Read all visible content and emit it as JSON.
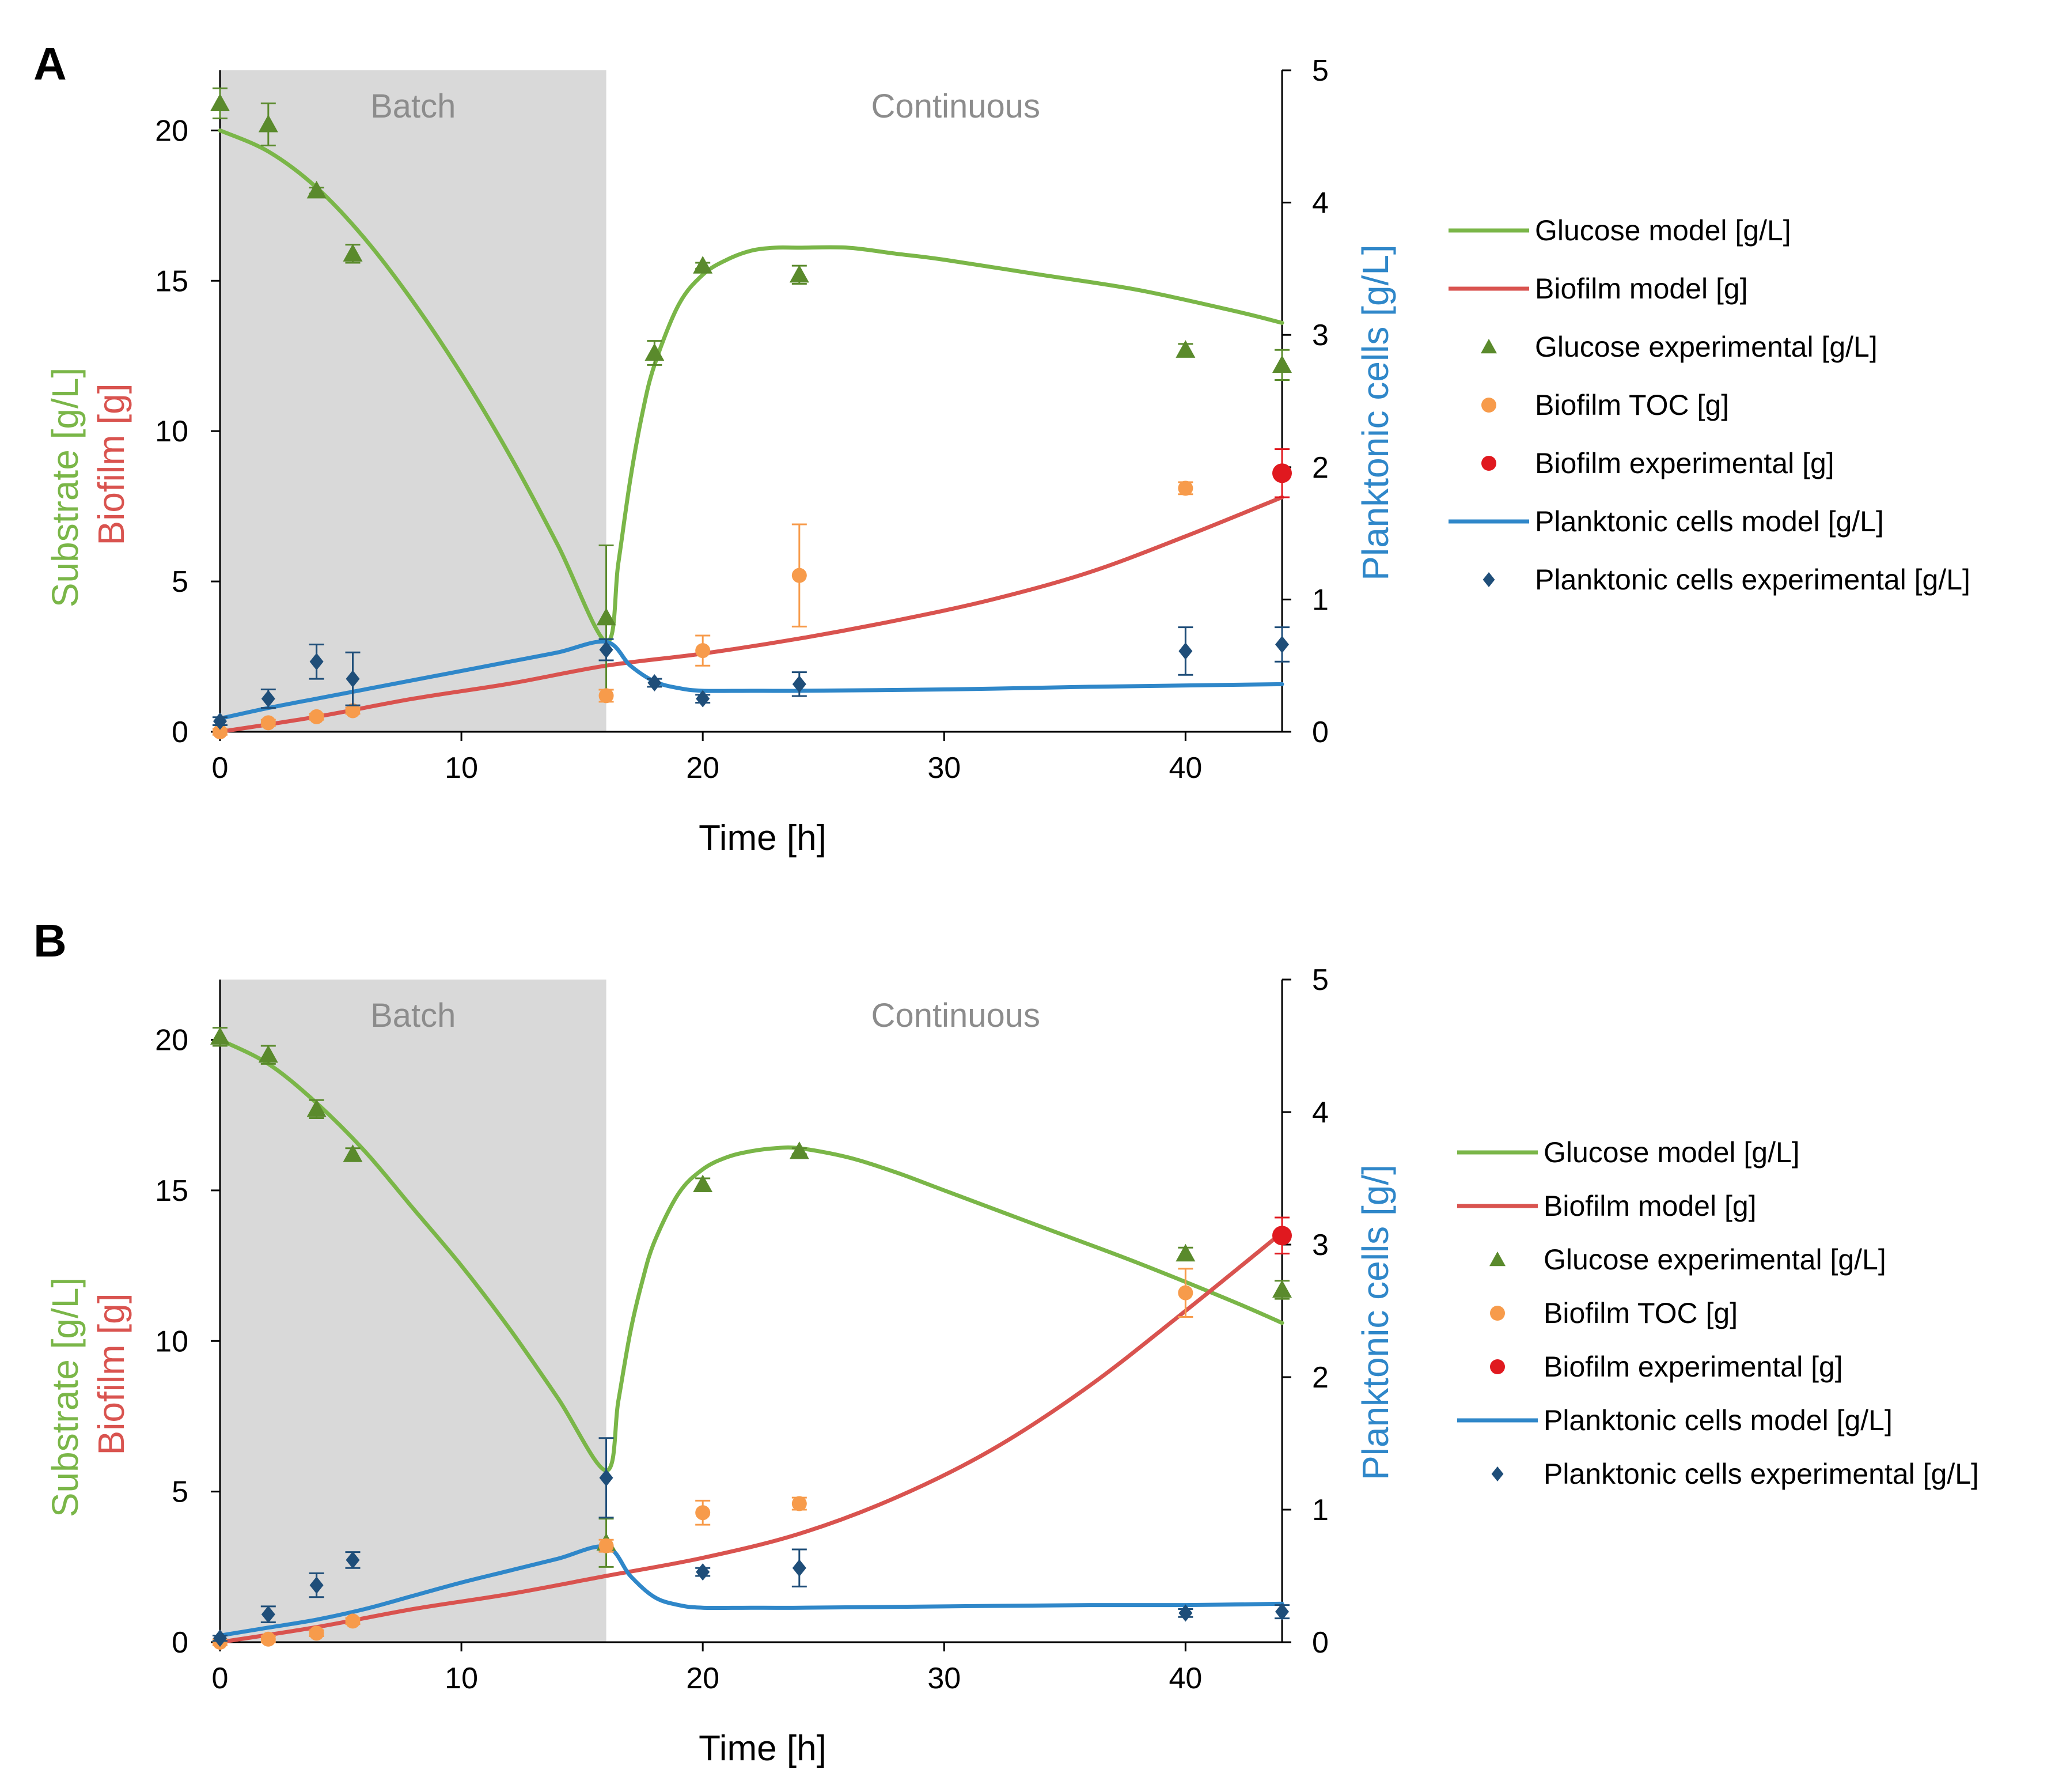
{
  "colors": {
    "glucose": "#7ab648",
    "glucose_marker": "#5a8a2c",
    "biofilm": "#d9534f",
    "biofilm_toc": "#f79b4b",
    "biofilm_exp": "#e0191f",
    "planktonic": "#2f87c9",
    "planktonic_marker": "#1f4e79",
    "batch_shade": "#d9d9d9",
    "phase_text": "#8c8c8c"
  },
  "chart_data": [
    {
      "panel": "A",
      "type": "line",
      "phase_labels": [
        "Batch",
        "Continuous"
      ],
      "batch_range": [
        0,
        16
      ],
      "xlabel": "Time [h]",
      "xlim": [
        0,
        44
      ],
      "xticks": [
        0,
        10,
        20,
        30,
        40
      ],
      "ylabel_left": [
        "Substrate [g/L]",
        "Biofilm [g]"
      ],
      "ylim_left": [
        0,
        22
      ],
      "yticks_left": [
        0,
        5,
        10,
        15,
        20
      ],
      "ylabel_right": "Planktonic cells [g/L]",
      "ylim_right": [
        0,
        5
      ],
      "yticks_right": [
        0,
        1,
        2,
        3,
        4,
        5
      ],
      "legend": [
        {
          "label": "Glucose model [g/L]",
          "kind": "line",
          "color_key": "glucose"
        },
        {
          "label": "Biofilm model [g]",
          "kind": "line",
          "color_key": "biofilm"
        },
        {
          "label": "Glucose experimental [g/L]",
          "kind": "triangle",
          "color_key": "glucose_marker"
        },
        {
          "label": "Biofilm TOC [g]",
          "kind": "circle",
          "color_key": "biofilm_toc"
        },
        {
          "label": "Biofilm experimental [g]",
          "kind": "circle",
          "color_key": "biofilm_exp"
        },
        {
          "label": "Planktonic cells model [g/L]",
          "kind": "line",
          "color_key": "planktonic"
        },
        {
          "label": "Planktonic cells experimental [g/L]",
          "kind": "diamond",
          "color_key": "planktonic_marker"
        }
      ],
      "series": [
        {
          "name": "Glucose model [g/L]",
          "axis": "left",
          "kind": "line",
          "color_key": "glucose",
          "x": [
            0,
            2,
            4,
            6,
            8,
            10,
            12,
            14,
            16,
            16.5,
            17,
            17.5,
            18,
            19,
            20,
            21,
            22,
            23,
            24,
            26,
            28,
            30,
            34,
            38,
            42,
            44
          ],
          "y": [
            20,
            19.3,
            18.1,
            16.4,
            14.3,
            11.9,
            9.2,
            6.2,
            3.0,
            5.6,
            8.4,
            10.6,
            12.2,
            14.2,
            15.2,
            15.7,
            16.0,
            16.1,
            16.1,
            16.1,
            15.9,
            15.7,
            15.2,
            14.7,
            14.0,
            13.6
          ]
        },
        {
          "name": "Biofilm model [g]",
          "axis": "left",
          "kind": "line",
          "color_key": "biofilm",
          "x": [
            0,
            4,
            8,
            12,
            16,
            20,
            24,
            28,
            32,
            36,
            40,
            44
          ],
          "y": [
            0,
            0.5,
            1.1,
            1.6,
            2.2,
            2.6,
            3.1,
            3.7,
            4.4,
            5.3,
            6.5,
            7.8
          ]
        },
        {
          "name": "Planktonic cells model [g/L]",
          "axis": "right",
          "kind": "line",
          "color_key": "planktonic",
          "x": [
            0,
            2,
            4,
            6,
            8,
            10,
            12,
            14,
            16,
            17,
            18,
            19,
            20,
            22,
            24,
            30,
            36,
            40,
            44
          ],
          "y": [
            0.1,
            0.18,
            0.25,
            0.32,
            0.39,
            0.46,
            0.53,
            0.6,
            0.68,
            0.5,
            0.38,
            0.33,
            0.31,
            0.31,
            0.31,
            0.32,
            0.34,
            0.35,
            0.36
          ]
        },
        {
          "name": "Glucose experimental [g/L]",
          "axis": "left",
          "kind": "triangle",
          "color_key": "glucose_marker",
          "x": [
            0,
            2,
            4,
            5.5,
            16,
            18,
            20,
            24,
            40,
            44
          ],
          "y": [
            20.9,
            20.2,
            18.0,
            15.9,
            3.8,
            12.6,
            15.5,
            15.2,
            12.7,
            12.2
          ],
          "err": [
            0.5,
            0.7,
            0.1,
            0.3,
            2.4,
            0.4,
            0.1,
            0.3,
            0.2,
            0.5
          ]
        },
        {
          "name": "Biofilm TOC [g]",
          "axis": "left",
          "kind": "circle",
          "color_key": "biofilm_toc",
          "x": [
            0,
            2,
            4,
            5.5,
            16,
            20,
            24,
            40
          ],
          "y": [
            0.0,
            0.3,
            0.5,
            0.7,
            1.2,
            2.7,
            5.2,
            8.1
          ],
          "err": [
            0.1,
            0.1,
            0.1,
            0.1,
            0.2,
            0.5,
            1.7,
            0.2
          ]
        },
        {
          "name": "Biofilm experimental [g]",
          "axis": "left",
          "kind": "circle",
          "color_key": "biofilm_exp",
          "x": [
            44
          ],
          "y": [
            8.6
          ],
          "err": [
            0.8
          ]
        },
        {
          "name": "Planktonic cells experimental [g/L]",
          "axis": "right",
          "kind": "diamond",
          "color_key": "planktonic_marker",
          "x": [
            0,
            2,
            4,
            5.5,
            16,
            18,
            20,
            24,
            40,
            44
          ],
          "y": [
            0.08,
            0.25,
            0.53,
            0.4,
            0.62,
            0.37,
            0.25,
            0.36,
            0.61,
            0.66
          ],
          "err": [
            0.03,
            0.07,
            0.13,
            0.2,
            0.08,
            0.03,
            0.03,
            0.09,
            0.18,
            0.13
          ]
        }
      ]
    },
    {
      "panel": "B",
      "type": "line",
      "phase_labels": [
        "Batch",
        "Continuous"
      ],
      "batch_range": [
        0,
        16
      ],
      "xlabel": "Time [h]",
      "xlim": [
        0,
        44
      ],
      "xticks": [
        0,
        10,
        20,
        30,
        40
      ],
      "ylabel_left": [
        "Substrate [g/L]",
        "Biofilm [g]"
      ],
      "ylim_left": [
        0,
        22
      ],
      "yticks_left": [
        0,
        5,
        10,
        15,
        20
      ],
      "ylabel_right": "Planktonic cells [g/]",
      "ylim_right": [
        0,
        5
      ],
      "yticks_right": [
        0,
        1,
        2,
        3,
        4,
        5
      ],
      "legend": [
        {
          "label": "Glucose model [g/L]",
          "kind": "line",
          "color_key": "glucose"
        },
        {
          "label": "Biofilm model [g]",
          "kind": "line",
          "color_key": "biofilm"
        },
        {
          "label": "Glucose experimental [g/L]",
          "kind": "triangle",
          "color_key": "glucose_marker"
        },
        {
          "label": "Biofilm TOC [g]",
          "kind": "circle",
          "color_key": "biofilm_toc"
        },
        {
          "label": "Biofilm experimental [g]",
          "kind": "circle",
          "color_key": "biofilm_exp"
        },
        {
          "label": "Planktonic cells model [g/L]",
          "kind": "line",
          "color_key": "planktonic"
        },
        {
          "label": "Planktonic cells experimental [g/L]",
          "kind": "diamond",
          "color_key": "planktonic_marker"
        }
      ],
      "series": [
        {
          "name": "Glucose model [g/L]",
          "axis": "left",
          "kind": "line",
          "color_key": "glucose",
          "x": [
            0,
            2,
            4,
            6,
            8,
            10,
            12,
            14,
            16,
            16.5,
            17,
            17.5,
            18,
            19,
            20,
            21,
            22,
            23,
            24,
            26,
            28,
            30,
            34,
            38,
            42,
            44
          ],
          "y": [
            20,
            19.2,
            17.9,
            16.3,
            14.4,
            12.5,
            10.4,
            8.1,
            5.7,
            8.0,
            10.3,
            12.0,
            13.3,
            14.9,
            15.7,
            16.1,
            16.3,
            16.4,
            16.4,
            16.1,
            15.6,
            15.0,
            13.8,
            12.6,
            11.3,
            10.6
          ]
        },
        {
          "name": "Biofilm model [g]",
          "axis": "left",
          "kind": "line",
          "color_key": "biofilm",
          "x": [
            0,
            4,
            8,
            12,
            16,
            20,
            24,
            28,
            32,
            36,
            40,
            44
          ],
          "y": [
            0,
            0.5,
            1.1,
            1.6,
            2.2,
            2.8,
            3.6,
            4.8,
            6.4,
            8.5,
            11.0,
            13.6
          ]
        },
        {
          "name": "Planktonic cells model [g/L]",
          "axis": "right",
          "kind": "line",
          "color_key": "planktonic",
          "x": [
            0,
            2,
            4,
            6,
            8,
            10,
            12,
            14,
            16,
            17,
            18,
            19,
            20,
            22,
            24,
            30,
            36,
            40,
            44
          ],
          "y": [
            0.05,
            0.11,
            0.17,
            0.25,
            0.35,
            0.45,
            0.54,
            0.63,
            0.72,
            0.5,
            0.34,
            0.28,
            0.26,
            0.26,
            0.26,
            0.27,
            0.28,
            0.28,
            0.29
          ]
        },
        {
          "name": "Glucose experimental [g/L]",
          "axis": "left",
          "kind": "triangle",
          "color_key": "glucose_marker",
          "x": [
            0,
            2,
            4,
            5.5,
            16,
            20,
            24,
            40,
            44
          ],
          "y": [
            20.1,
            19.5,
            17.7,
            16.2,
            3.3,
            15.2,
            16.3,
            12.9,
            11.7
          ],
          "err": [
            0.3,
            0.3,
            0.3,
            0.2,
            0.8,
            0.2,
            0.1,
            0.2,
            0.3
          ]
        },
        {
          "name": "Biofilm TOC [g]",
          "axis": "left",
          "kind": "circle",
          "color_key": "biofilm_toc",
          "x": [
            0,
            2,
            4,
            5.5,
            16,
            20,
            24,
            40
          ],
          "y": [
            0.0,
            0.1,
            0.3,
            0.7,
            3.2,
            4.3,
            4.6,
            11.6
          ],
          "err": [
            0.1,
            0.1,
            0.1,
            0.1,
            0.2,
            0.4,
            0.2,
            0.8
          ]
        },
        {
          "name": "Biofilm experimental [g]",
          "axis": "left",
          "kind": "circle",
          "color_key": "biofilm_exp",
          "x": [
            44
          ],
          "y": [
            13.5
          ],
          "err": [
            0.6
          ]
        },
        {
          "name": "Planktonic cells experimental [g/L]",
          "axis": "right",
          "kind": "diamond",
          "color_key": "planktonic_marker",
          "x": [
            0,
            2,
            4,
            5.5,
            16,
            20,
            24,
            40,
            44
          ],
          "y": [
            0.03,
            0.21,
            0.43,
            0.62,
            1.24,
            0.53,
            0.56,
            0.22,
            0.23
          ],
          "err": [
            0.02,
            0.06,
            0.09,
            0.06,
            0.3,
            0.03,
            0.14,
            0.03,
            0.05
          ]
        }
      ]
    }
  ]
}
